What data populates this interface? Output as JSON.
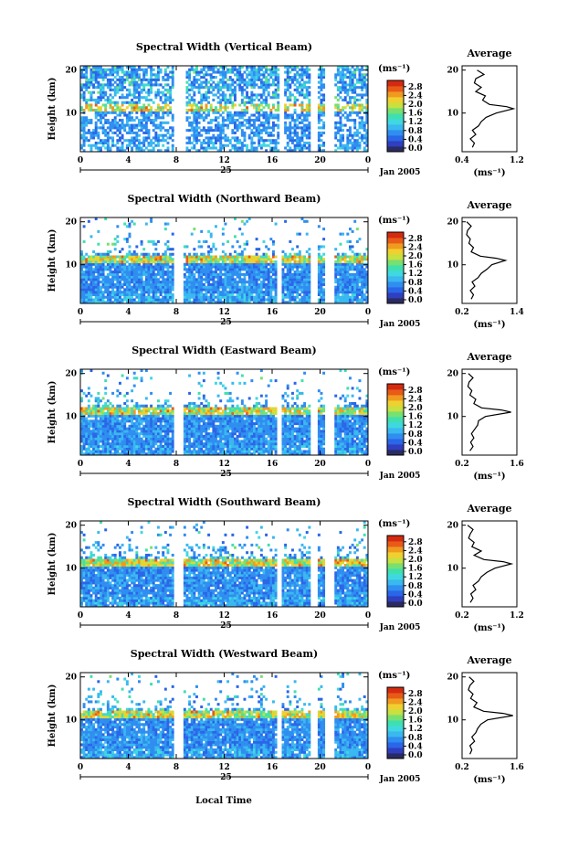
{
  "figure": {
    "footer_xlabel": "Local Time",
    "colorscale": [
      "#2b2b63",
      "#2f3fbf",
      "#2a66e8",
      "#2f8ef0",
      "#3ab8f0",
      "#40d8e0",
      "#3fe0b0",
      "#78e070",
      "#c8e040",
      "#f0d030",
      "#f09a20",
      "#e85a18",
      "#d42a10"
    ]
  },
  "chart_data": [
    {
      "type": "heatmap",
      "title": "Spectral Width (Vertical Beam)",
      "ylabel": "Height (km)",
      "yticks": [
        "20",
        "10"
      ],
      "ylim": [
        1,
        21
      ],
      "xticks": [
        "0",
        "4",
        "8",
        "12",
        "16",
        "20",
        "0"
      ],
      "xlim": [
        0,
        24
      ],
      "day_label": "25",
      "date_label": "Jan 2005",
      "gaps_hours": [
        [
          7.8,
          8.8
        ],
        [
          16.6,
          17.0
        ],
        [
          19.3,
          19.8
        ],
        [
          20.5,
          21.2
        ]
      ],
      "colorbar": {
        "unit": "(ms⁻¹)",
        "ticks": [
          "2.8",
          "2.4",
          "2.0",
          "1.6",
          "1.2",
          "0.8",
          "0.4",
          "0.0"
        ],
        "range": [
          0,
          3.0
        ]
      },
      "average": {
        "title": "Average",
        "xlabel": "(ms⁻¹)",
        "xticks": [
          "0.4",
          "1.2"
        ],
        "xlim": [
          0.4,
          1.2
        ],
        "yticks": [
          "20",
          "10"
        ],
        "profile": [
          [
            0.55,
            2
          ],
          [
            0.58,
            3
          ],
          [
            0.52,
            4
          ],
          [
            0.6,
            5
          ],
          [
            0.55,
            6
          ],
          [
            0.64,
            7
          ],
          [
            0.68,
            8
          ],
          [
            0.75,
            9
          ],
          [
            0.9,
            10
          ],
          [
            1.15,
            11
          ],
          [
            1.05,
            11.5
          ],
          [
            0.8,
            12
          ],
          [
            0.7,
            13
          ],
          [
            0.74,
            14
          ],
          [
            0.6,
            15
          ],
          [
            0.68,
            16
          ],
          [
            0.58,
            17
          ],
          [
            0.6,
            18
          ],
          [
            0.72,
            19
          ],
          [
            0.62,
            20
          ]
        ]
      }
    },
    {
      "type": "heatmap",
      "title": "Spectral Width (Northward Beam)",
      "ylabel": "Height (km)",
      "yticks": [
        "20",
        "10"
      ],
      "ylim": [
        1,
        21
      ],
      "xticks": [
        "0",
        "4",
        "8",
        "12",
        "16",
        "20",
        "0"
      ],
      "xlim": [
        0,
        24
      ],
      "day_label": "25",
      "date_label": "Jan 2005",
      "gaps_hours": [
        [
          7.8,
          8.6
        ],
        [
          16.4,
          16.8
        ],
        [
          19.3,
          19.8
        ],
        [
          20.5,
          21.2
        ]
      ],
      "colorbar": {
        "unit": "(ms⁻¹)",
        "ticks": [
          "2.8",
          "2.4",
          "2.0",
          "1.6",
          "1.2",
          "0.8",
          "0.4",
          "0.0"
        ],
        "range": [
          0,
          3.0
        ]
      },
      "average": {
        "title": "Average",
        "xlabel": "(ms⁻¹)",
        "xticks": [
          "0.2",
          "1.4"
        ],
        "xlim": [
          0.2,
          1.4
        ],
        "yticks": [
          "20",
          "10"
        ],
        "profile": [
          [
            0.4,
            2
          ],
          [
            0.45,
            3
          ],
          [
            0.38,
            4
          ],
          [
            0.48,
            5
          ],
          [
            0.42,
            6
          ],
          [
            0.55,
            7
          ],
          [
            0.62,
            8
          ],
          [
            0.75,
            9
          ],
          [
            0.85,
            10
          ],
          [
            1.15,
            11
          ],
          [
            0.95,
            11.5
          ],
          [
            0.6,
            12
          ],
          [
            0.4,
            13
          ],
          [
            0.45,
            14
          ],
          [
            0.35,
            15
          ],
          [
            0.38,
            16
          ],
          [
            0.3,
            17
          ],
          [
            0.32,
            18
          ],
          [
            0.4,
            19
          ],
          [
            0.3,
            20
          ]
        ]
      }
    },
    {
      "type": "heatmap",
      "title": "Spectral Width (Eastward Beam)",
      "ylabel": "Height (km)",
      "yticks": [
        "20",
        "10"
      ],
      "ylim": [
        1,
        21
      ],
      "xticks": [
        "0",
        "4",
        "8",
        "12",
        "16",
        "20",
        "0"
      ],
      "xlim": [
        0,
        24
      ],
      "day_label": "25",
      "date_label": "Jan 2005",
      "gaps_hours": [
        [
          7.8,
          8.6
        ],
        [
          16.4,
          16.8
        ],
        [
          19.3,
          19.8
        ],
        [
          20.5,
          21.2
        ]
      ],
      "colorbar": {
        "unit": "(ms⁻¹)",
        "ticks": [
          "2.8",
          "2.4",
          "2.0",
          "1.6",
          "1.2",
          "0.8",
          "0.4",
          "0.0"
        ],
        "range": [
          0,
          3.0
        ]
      },
      "average": {
        "title": "Average",
        "xlabel": "(ms⁻¹)",
        "xticks": [
          "0.2",
          "1.6"
        ],
        "xlim": [
          0.2,
          1.6
        ],
        "yticks": [
          "20",
          "10"
        ],
        "profile": [
          [
            0.4,
            2
          ],
          [
            0.48,
            3
          ],
          [
            0.42,
            4
          ],
          [
            0.5,
            5
          ],
          [
            0.44,
            6
          ],
          [
            0.52,
            7
          ],
          [
            0.6,
            8
          ],
          [
            0.62,
            9
          ],
          [
            0.8,
            10
          ],
          [
            1.45,
            11
          ],
          [
            1.2,
            11.5
          ],
          [
            0.7,
            12
          ],
          [
            0.5,
            13
          ],
          [
            0.55,
            14
          ],
          [
            0.4,
            15
          ],
          [
            0.45,
            16
          ],
          [
            0.35,
            17
          ],
          [
            0.38,
            18
          ],
          [
            0.48,
            19
          ],
          [
            0.36,
            20
          ]
        ]
      }
    },
    {
      "type": "heatmap",
      "title": "Spectral Width (Southward Beam)",
      "ylabel": "Height (km)",
      "yticks": [
        "20",
        "10"
      ],
      "ylim": [
        1,
        21
      ],
      "xticks": [
        "0",
        "4",
        "8",
        "12",
        "16",
        "20",
        "0"
      ],
      "xlim": [
        0,
        24
      ],
      "day_label": "25",
      "date_label": "Jan 2005",
      "gaps_hours": [
        [
          7.8,
          8.6
        ],
        [
          16.4,
          16.8
        ],
        [
          19.3,
          19.8
        ],
        [
          20.5,
          21.2
        ]
      ],
      "colorbar": {
        "unit": "(ms⁻¹)",
        "ticks": [
          "2.8",
          "2.4",
          "2.0",
          "1.6",
          "1.2",
          "0.8",
          "0.4",
          "0.0"
        ],
        "range": [
          0,
          3.0
        ]
      },
      "average": {
        "title": "Average",
        "xlabel": "(ms⁻¹)",
        "xticks": [
          "0.2",
          "1.2"
        ],
        "xlim": [
          0.2,
          1.2
        ],
        "yticks": [
          "20",
          "10"
        ],
        "profile": [
          [
            0.35,
            2
          ],
          [
            0.4,
            3
          ],
          [
            0.36,
            4
          ],
          [
            0.45,
            5
          ],
          [
            0.4,
            6
          ],
          [
            0.5,
            7
          ],
          [
            0.55,
            8
          ],
          [
            0.65,
            9
          ],
          [
            0.8,
            10
          ],
          [
            1.1,
            11
          ],
          [
            0.95,
            11.5
          ],
          [
            0.6,
            12
          ],
          [
            0.42,
            13
          ],
          [
            0.55,
            14
          ],
          [
            0.38,
            15
          ],
          [
            0.42,
            16
          ],
          [
            0.32,
            17
          ],
          [
            0.35,
            18
          ],
          [
            0.4,
            19
          ],
          [
            0.3,
            20
          ]
        ]
      }
    },
    {
      "type": "heatmap",
      "title": "Spectral Width (Westward Beam)",
      "ylabel": "Height (km)",
      "yticks": [
        "20",
        "10"
      ],
      "ylim": [
        1,
        21
      ],
      "xticks": [
        "0",
        "4",
        "8",
        "12",
        "16",
        "20",
        "0"
      ],
      "xlim": [
        0,
        24
      ],
      "day_label": "25",
      "date_label": "Jan 2005",
      "gaps_hours": [
        [
          7.8,
          8.6
        ],
        [
          16.4,
          16.8
        ],
        [
          19.3,
          19.8
        ],
        [
          20.5,
          21.2
        ]
      ],
      "colorbar": {
        "unit": "(ms⁻¹)",
        "ticks": [
          "2.8",
          "2.4",
          "2.0",
          "1.6",
          "1.2",
          "0.8",
          "0.4",
          "0.0"
        ],
        "range": [
          0,
          3.0
        ]
      },
      "average": {
        "title": "Average",
        "xlabel": "(ms⁻¹)",
        "xticks": [
          "0.2",
          "1.6"
        ],
        "xlim": [
          0.2,
          1.6
        ],
        "yticks": [
          "20",
          "10"
        ],
        "profile": [
          [
            0.4,
            2
          ],
          [
            0.45,
            3
          ],
          [
            0.4,
            4
          ],
          [
            0.52,
            5
          ],
          [
            0.45,
            6
          ],
          [
            0.55,
            7
          ],
          [
            0.6,
            8
          ],
          [
            0.68,
            9
          ],
          [
            0.85,
            10
          ],
          [
            1.5,
            11
          ],
          [
            1.25,
            11.5
          ],
          [
            0.75,
            12
          ],
          [
            0.5,
            13
          ],
          [
            0.58,
            14
          ],
          [
            0.42,
            15
          ],
          [
            0.48,
            16
          ],
          [
            0.36,
            17
          ],
          [
            0.4,
            18
          ],
          [
            0.5,
            19
          ],
          [
            0.38,
            20
          ]
        ]
      }
    }
  ]
}
